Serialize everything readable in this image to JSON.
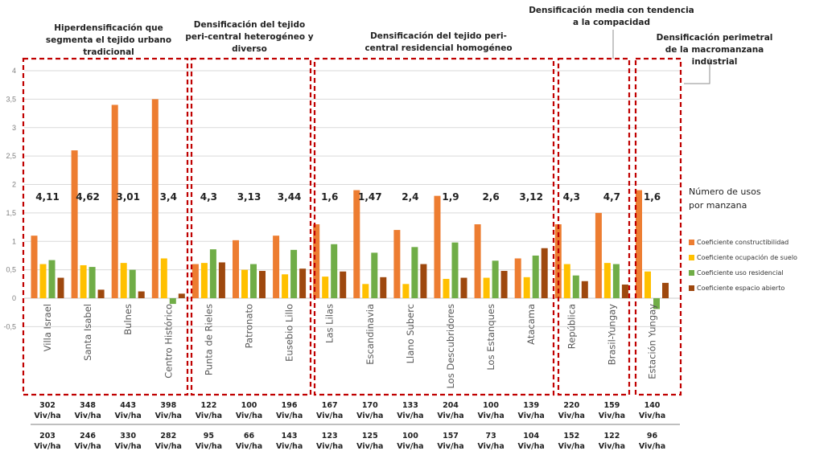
{
  "chart_data": {
    "type": "bar",
    "title": "",
    "xlabel": "",
    "ylabel": "",
    "ylim": [
      -0.5,
      4
    ],
    "yticks": [
      4,
      3.5,
      3,
      2.5,
      2,
      1.5,
      1,
      0.5,
      0,
      -0.5
    ],
    "ytick_labels": [
      "4",
      "3,5",
      "3",
      "2,5",
      "2",
      "1,5",
      "1",
      "0,5",
      "0",
      "-0,5"
    ],
    "grid": true,
    "legend_position": "right",
    "categories": [
      "Villa Israel",
      "Santa Isabel",
      "Bulnes",
      "Centro Histórico",
      "Punta de Rieles",
      "Patronato",
      "Eusebio Lillo",
      "Las Lilas",
      "Escandinavia",
      "Llano Suberc",
      "Los Descubridores",
      "Los Estanques",
      "Atacama",
      "República",
      "Brasil-Yungay",
      "Estación Yungay"
    ],
    "series": [
      {
        "name": "Coeficiente constructibilidad",
        "color": "#ED7D31",
        "values": [
          1.1,
          2.6,
          3.4,
          3.5,
          0.6,
          1.02,
          1.1,
          1.3,
          1.9,
          1.2,
          1.8,
          1.3,
          0.7,
          1.3,
          1.5,
          1.9
        ]
      },
      {
        "name": "Coeficiente  ocupación de suelo",
        "color": "#FFC000",
        "values": [
          0.6,
          0.58,
          0.62,
          0.7,
          0.62,
          0.5,
          0.42,
          0.38,
          0.25,
          0.25,
          0.34,
          0.36,
          0.37,
          0.6,
          0.62,
          0.47
        ]
      },
      {
        "name": "Coeficiente uso residencial",
        "color": "#70AD47",
        "values": [
          0.67,
          0.55,
          0.5,
          -0.1,
          0.86,
          0.6,
          0.85,
          0.95,
          0.8,
          0.9,
          0.98,
          0.66,
          0.75,
          0.4,
          0.6,
          -0.19
        ]
      },
      {
        "name": "Coeficiente  espacio abierto",
        "color": "#9E480E",
        "values": [
          0.36,
          0.15,
          0.12,
          0.08,
          0.63,
          0.48,
          0.52,
          0.47,
          0.37,
          0.6,
          0.36,
          0.48,
          0.88,
          0.3,
          0.24,
          0.27
        ]
      }
    ],
    "annotations": {
      "usos_por_manzana_label": "Número de usos por manzana",
      "usos_por_manzana": [
        "4,11",
        "4,62",
        "3,01",
        "3,4",
        "4,3",
        "3,13",
        "3,44",
        "1,6",
        "1,47",
        "2,4",
        "1,9",
        "2,6",
        "3,12",
        "4,3",
        "4,7",
        "1,6"
      ],
      "density_row1": [
        "302",
        "348",
        "443",
        "398",
        "122",
        "100",
        "196",
        "167",
        "170",
        "133",
        "204",
        "100",
        "139",
        "220",
        "159",
        "140"
      ],
      "density_row2": [
        "203",
        "246",
        "330",
        "282",
        "95",
        "66",
        "143",
        "123",
        "125",
        "100",
        "157",
        "73",
        "104",
        "152",
        "122",
        "96"
      ],
      "density_unit": "Viv/ha"
    },
    "groups": [
      {
        "title": "Hiperdensificación que segmenta el tejido urbano tradicional",
        "categories": [
          0,
          3
        ]
      },
      {
        "title": "Densificación del tejido peri-central heterogéneo y diverso",
        "categories": [
          4,
          6
        ]
      },
      {
        "title": "Densificación del tejido peri-central residencial homogéneo",
        "categories": [
          7,
          12
        ]
      },
      {
        "title": "Densificación media con tendencia a la compacidad",
        "categories": [
          13,
          14
        ]
      },
      {
        "title": "Densificación perimetral de la macromanzana industrial",
        "categories": [
          15,
          15
        ]
      }
    ]
  },
  "group_titles": {
    "g1": "Hiperdensificación que segmenta el tejido urbano tradicional",
    "g2": "Densificación del tejido peri-central heterogéneo y diverso",
    "g3": "Densificación del tejido peri-central residencial homogéneo",
    "g4": "Densificación media con tendencia a la compacidad",
    "g5": "Densificación perimetral de la macromanzana industrial"
  },
  "legend": {
    "title": "Número de usos por manzana",
    "items": [
      {
        "label": "Coeficiente constructibilidad",
        "color": "#ED7D31"
      },
      {
        "label": "Coeficiente  ocupación de suelo",
        "color": "#FFC000"
      },
      {
        "label": "Coeficiente uso residencial",
        "color": "#70AD47"
      },
      {
        "label": "Coeficiente  espacio abierto",
        "color": "#9E480E"
      }
    ]
  },
  "colors": {
    "box_border": "#C00000",
    "grid": "#D9D9D9",
    "axis_text": "#7F7F7F"
  }
}
